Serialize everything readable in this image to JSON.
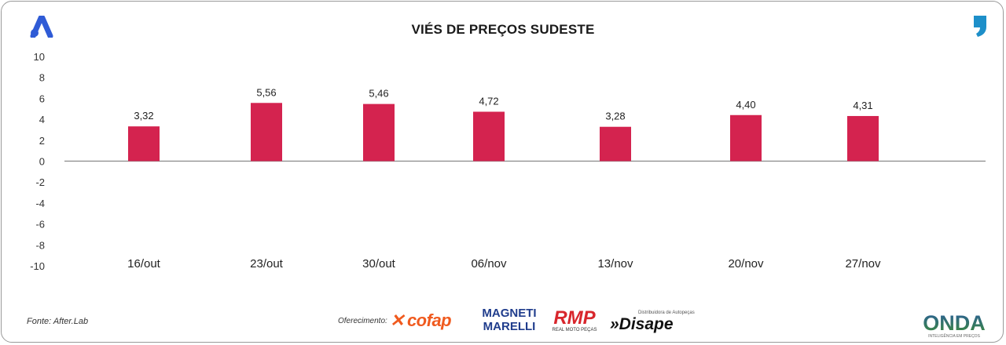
{
  "header": {
    "title": "VIÉS DE PREÇOS SUDESTE"
  },
  "chart_data": {
    "type": "bar",
    "title": "VIÉS DE PREÇOS SUDESTE",
    "categories": [
      "16/out",
      "23/out",
      "30/out",
      "06/nov",
      "13/nov",
      "20/nov",
      "27/nov"
    ],
    "values": [
      3.32,
      5.56,
      5.46,
      4.72,
      3.28,
      4.4,
      4.31
    ],
    "value_labels": [
      "3,32",
      "5,56",
      "5,46",
      "4,72",
      "3,28",
      "4,40",
      "4,31"
    ],
    "yticks": [
      "10",
      "8",
      "6",
      "4",
      "2",
      "0",
      "-2",
      "-4",
      "-6",
      "-8",
      "-10"
    ],
    "ylim": [
      -10,
      10
    ],
    "xlabel": "",
    "ylabel": "",
    "grid": false,
    "bar_color": "#d4234f"
  },
  "footer": {
    "source": "Fonte: After.Lab",
    "offer_label": "Oferecimento:",
    "sponsors": {
      "cofap": "cofap",
      "magneti_line1": "MAGNETI",
      "magneti_line2": "MARELLI",
      "rmp": "RMP",
      "rmp_tag": "REAL MOTO PEÇAS",
      "disape": "»Disape",
      "disape_tag": "Distribuidora de Autopeças",
      "onda": "ONDA",
      "onda_tag": "INTELIGÊNCIA EM PREÇOS"
    }
  },
  "colors": {
    "brand_blue": "#2f5bd6",
    "quote_blue": "#1d8fc9",
    "bar": "#d4234f",
    "axis": "#8a8a8a",
    "cofap_orange": "#f05a1e",
    "magneti_blue": "#1f3c8c",
    "rmp_red": "#d8262c",
    "onda_green": "#3d8b3a"
  },
  "icons": {
    "brand": "brand-a-icon",
    "quote": "quote-mark-icon"
  }
}
